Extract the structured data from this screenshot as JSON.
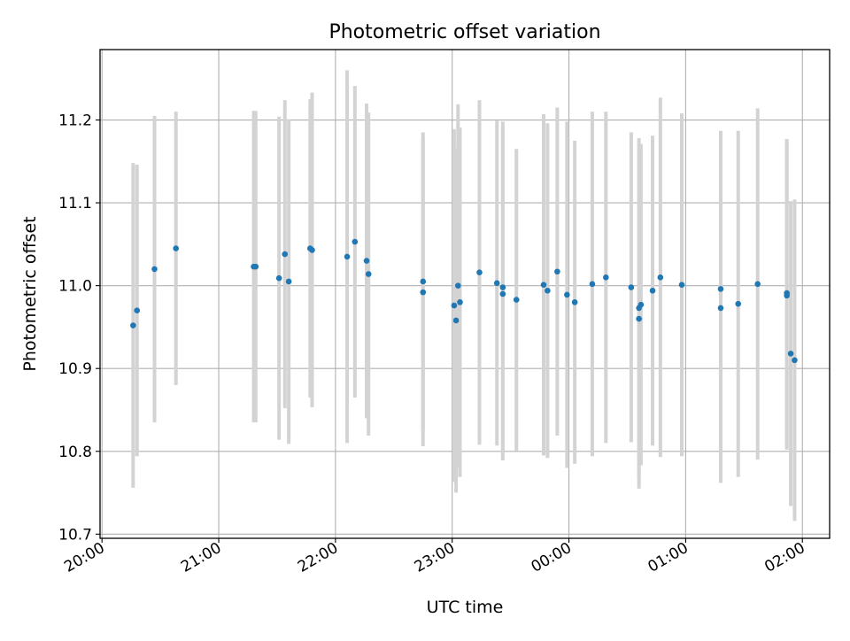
{
  "chart_data": {
    "type": "scatter",
    "title": "Photometric offset variation",
    "xlabel": "UTC time",
    "ylabel": "Photometric offset",
    "xlim": [
      "19:59",
      "02:14"
    ],
    "ylim": [
      10.695,
      11.285
    ],
    "x_ticks": [
      "20:00",
      "21:00",
      "22:00",
      "23:00",
      "00:00",
      "01:00",
      "02:00"
    ],
    "y_ticks": [
      "10.7",
      "10.8",
      "10.9",
      "11.0",
      "11.1",
      "11.2"
    ],
    "grid": true,
    "colors": {
      "points": "#1f77b4",
      "errorbars": "#d3d3d3",
      "grid": "#b0b0b0"
    },
    "series": [
      {
        "x": [
          "20:16",
          "20:18",
          "20:27",
          "20:38",
          "21:18",
          "21:19",
          "21:31",
          "21:34",
          "21:36",
          "21:47",
          "21:48",
          "22:06",
          "22:10",
          "22:16",
          "22:17",
          "22:45",
          "22:45",
          "23:01",
          "23:02",
          "23:03",
          "23:04",
          "23:14",
          "23:23",
          "23:26",
          "23:26",
          "23:33",
          "23:47",
          "23:49",
          "23:54",
          "23:59",
          "24:03",
          "24:12",
          "24:19",
          "24:32",
          "24:36",
          "24:36",
          "24:37",
          "24:43",
          "24:47",
          "24:58",
          "25:18",
          "25:18",
          "25:27",
          "25:37",
          "25:52",
          "25:52",
          "25:54",
          "25:56"
        ],
        "y": [
          10.952,
          10.97,
          11.02,
          11.045,
          11.023,
          11.023,
          11.009,
          11.038,
          11.005,
          11.045,
          11.043,
          11.035,
          11.053,
          11.03,
          11.014,
          11.005,
          10.992,
          10.976,
          10.958,
          11.0,
          10.98,
          11.016,
          11.003,
          10.998,
          10.99,
          10.983,
          11.001,
          10.994,
          11.017,
          10.989,
          10.98,
          11.002,
          11.01,
          10.998,
          10.973,
          10.96,
          10.977,
          10.994,
          11.01,
          11.001,
          10.973,
          10.996,
          10.978,
          11.002,
          10.991,
          10.988,
          10.918,
          10.91
        ],
        "yerr": [
          0.196,
          0.176,
          0.185,
          0.165,
          0.188,
          0.188,
          0.195,
          0.186,
          0.196,
          0.18,
          0.19,
          0.225,
          0.188,
          0.19,
          0.195,
          0.18,
          0.186,
          0.213,
          0.208,
          0.219,
          0.211,
          0.208,
          0.196,
          0.2,
          0.201,
          0.182,
          0.206,
          0.202,
          0.198,
          0.209,
          0.195,
          0.208,
          0.2,
          0.187,
          0.205,
          0.205,
          0.194,
          0.187,
          0.217,
          0.207,
          0.211,
          0.191,
          0.209,
          0.212,
          0.186,
          0.186,
          0.184,
          0.194
        ]
      }
    ]
  }
}
